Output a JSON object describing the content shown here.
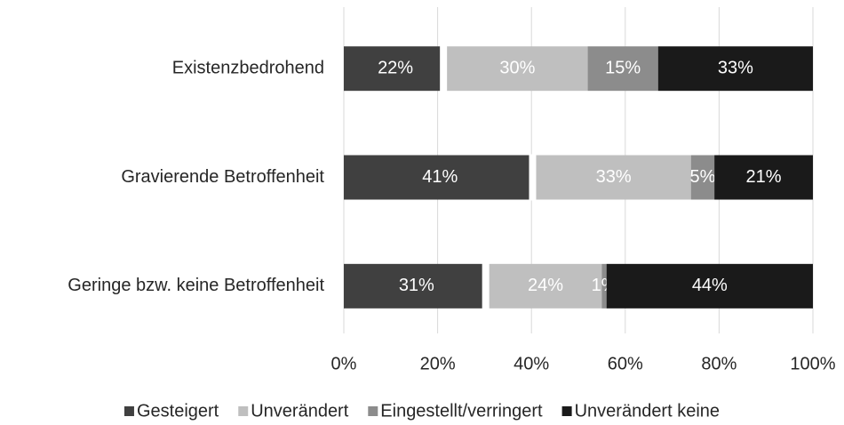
{
  "chart_data": {
    "type": "stacked-bar-horizontal",
    "categories": [
      "Existenzbedrohend",
      "Gravierende Betroffenheit",
      "Geringe bzw. keine Betroffenheit"
    ],
    "series": [
      {
        "name": "Gesteigert",
        "color": "#404040",
        "values": [
          22,
          41,
          31
        ],
        "value_labels": [
          "22%",
          "41%",
          "31%"
        ]
      },
      {
        "name": "Unverändert",
        "color": "#bfbfbf",
        "values": [
          30,
          33,
          24
        ],
        "value_labels": [
          "30%",
          "33%",
          "24%"
        ]
      },
      {
        "name": "Eingestellt/verringert",
        "color": "#8c8c8c",
        "values": [
          15,
          5,
          1
        ],
        "value_labels": [
          "15%",
          "5%",
          "1%"
        ]
      },
      {
        "name": "Unverändert keine",
        "color": "#1a1a1a",
        "values": [
          33,
          21,
          44
        ],
        "value_labels": [
          "33%",
          "21%",
          "44%"
        ]
      }
    ],
    "xlim": [
      0,
      100
    ],
    "xticks": [
      {
        "value": 0,
        "label": "0%"
      },
      {
        "value": 20,
        "label": "20%"
      },
      {
        "value": 40,
        "label": "40%"
      },
      {
        "value": 60,
        "label": "60%"
      },
      {
        "value": 80,
        "label": "80%"
      },
      {
        "value": 100,
        "label": "100%"
      }
    ],
    "grid": true,
    "legend": "bottom"
  }
}
